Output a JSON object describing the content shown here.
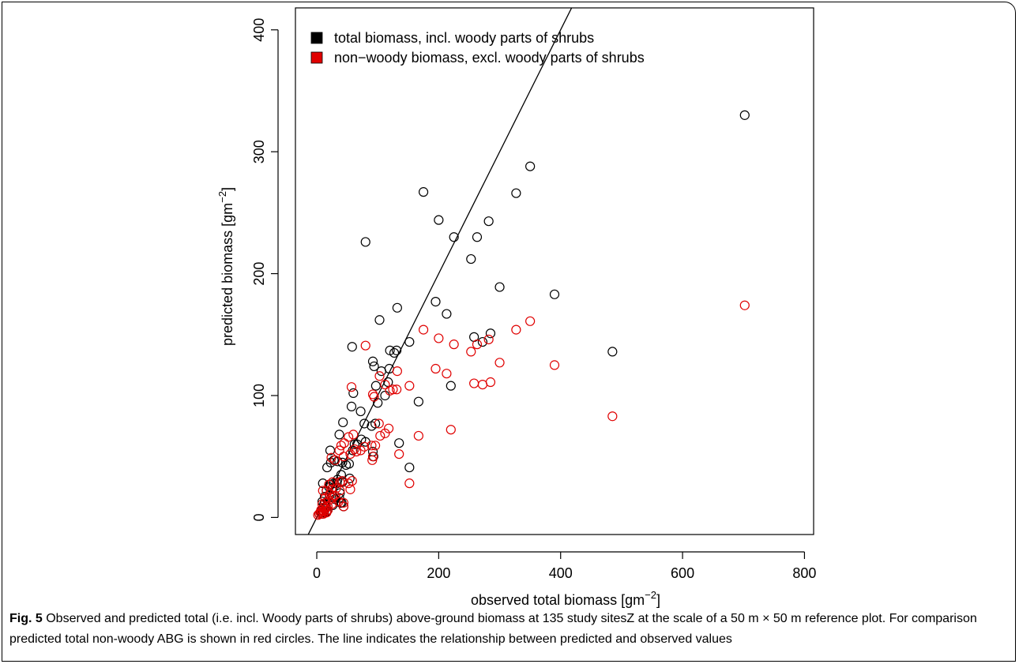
{
  "chart_data": {
    "type": "scatter",
    "xlabel": "observed total biomass [gm",
    "ylabel": "predicted biomass [gm",
    "unit_exponent": "−2",
    "xlim": [
      -35,
      815
    ],
    "ylim": [
      -14,
      418
    ],
    "x_ticks": [
      0,
      200,
      400,
      600,
      800
    ],
    "y_ticks": [
      0,
      100,
      200,
      300,
      400
    ],
    "x_tick_labels": [
      "0",
      "200",
      "400",
      "600",
      "800"
    ],
    "y_tick_labels": [
      "0",
      "100",
      "200",
      "300",
      "400"
    ],
    "grid": false,
    "legend_position": "top-left",
    "reference_line": {
      "description": "1:1 line",
      "slope": 1,
      "intercept": 0
    },
    "series": [
      {
        "name": "total biomass, incl. woody parts of shrubs",
        "color": "#000000",
        "points": [
          [
            702,
            330
          ],
          [
            350,
            288
          ],
          [
            327,
            266
          ],
          [
            175,
            267
          ],
          [
            200,
            244
          ],
          [
            282,
            243
          ],
          [
            263,
            230
          ],
          [
            225,
            230
          ],
          [
            80,
            226
          ],
          [
            253,
            212
          ],
          [
            195,
            177
          ],
          [
            132,
            172
          ],
          [
            213,
            167
          ],
          [
            103,
            162
          ],
          [
            300,
            189
          ],
          [
            390,
            183
          ],
          [
            285,
            151
          ],
          [
            258,
            148
          ],
          [
            272,
            144
          ],
          [
            152,
            144
          ],
          [
            58,
            140
          ],
          [
            120,
            137
          ],
          [
            127,
            135
          ],
          [
            131,
            137
          ],
          [
            92,
            128
          ],
          [
            94,
            124
          ],
          [
            119,
            122
          ],
          [
            106,
            120
          ],
          [
            97,
            108
          ],
          [
            220,
            108
          ],
          [
            485,
            136
          ],
          [
            60,
            102
          ],
          [
            117,
            111
          ],
          [
            112,
            100
          ],
          [
            57,
            91
          ],
          [
            100,
            94
          ],
          [
            167,
            95
          ],
          [
            72,
            87
          ],
          [
            96,
            77
          ],
          [
            90,
            75
          ],
          [
            78,
            77
          ],
          [
            43,
            78
          ],
          [
            62,
            60
          ],
          [
            73,
            64
          ],
          [
            66,
            60
          ],
          [
            59,
            55
          ],
          [
            37,
            68
          ],
          [
            80,
            62
          ],
          [
            92,
            54
          ],
          [
            93,
            50
          ],
          [
            135,
            61
          ],
          [
            53,
            44
          ],
          [
            48,
            43
          ],
          [
            42,
            45
          ],
          [
            22,
            55
          ],
          [
            28,
            47
          ],
          [
            23,
            45
          ],
          [
            17,
            41
          ],
          [
            34,
            46
          ],
          [
            152,
            41
          ],
          [
            40,
            35
          ],
          [
            54,
            32
          ],
          [
            34,
            31
          ],
          [
            42,
            29
          ],
          [
            28,
            28
          ],
          [
            33,
            28
          ],
          [
            22,
            27
          ],
          [
            10,
            28
          ],
          [
            20,
            25
          ],
          [
            26,
            24
          ],
          [
            16,
            22
          ],
          [
            38,
            20
          ],
          [
            21,
            18
          ],
          [
            13,
            17
          ],
          [
            37,
            16
          ],
          [
            30,
            15
          ],
          [
            9,
            13
          ],
          [
            39,
            12
          ],
          [
            41,
            12
          ],
          [
            12,
            11
          ],
          [
            26,
            10
          ],
          [
            44,
            9
          ],
          [
            15,
            9
          ],
          [
            11,
            8
          ],
          [
            14,
            7
          ],
          [
            8,
            6
          ],
          [
            18,
            6
          ],
          [
            11,
            5
          ],
          [
            16,
            5
          ],
          [
            7,
            4
          ],
          [
            12,
            4
          ],
          [
            9,
            3
          ],
          [
            4,
            3
          ]
        ]
      },
      {
        "name": "non−woody biomass, excl. woody parts of shrubs",
        "color": "#e00000",
        "points": [
          [
            702,
            174
          ],
          [
            350,
            161
          ],
          [
            327,
            154
          ],
          [
            175,
            154
          ],
          [
            200,
            147
          ],
          [
            282,
            146
          ],
          [
            263,
            142
          ],
          [
            225,
            142
          ],
          [
            80,
            141
          ],
          [
            253,
            136
          ],
          [
            300,
            127
          ],
          [
            390,
            125
          ],
          [
            195,
            122
          ],
          [
            213,
            118
          ],
          [
            132,
            120
          ],
          [
            103,
            116
          ],
          [
            57,
            107
          ],
          [
            92,
            101
          ],
          [
            94,
            99
          ],
          [
            120,
            104
          ],
          [
            125,
            105
          ],
          [
            131,
            105
          ],
          [
            112,
            109
          ],
          [
            152,
            108
          ],
          [
            258,
            110
          ],
          [
            272,
            109
          ],
          [
            285,
            111
          ],
          [
            485,
            83
          ],
          [
            102,
            77
          ],
          [
            118,
            73
          ],
          [
            112,
            69
          ],
          [
            104,
            67
          ],
          [
            167,
            67
          ],
          [
            220,
            72
          ],
          [
            135,
            52
          ],
          [
            60,
            68
          ],
          [
            52,
            66
          ],
          [
            45,
            61
          ],
          [
            40,
            59
          ],
          [
            62,
            56
          ],
          [
            65,
            54
          ],
          [
            78,
            58
          ],
          [
            90,
            59
          ],
          [
            96,
            59
          ],
          [
            92,
            50
          ],
          [
            91,
            47
          ],
          [
            72,
            55
          ],
          [
            55,
            52
          ],
          [
            37,
            55
          ],
          [
            44,
            50
          ],
          [
            24,
            49
          ],
          [
            30,
            47
          ],
          [
            152,
            28
          ],
          [
            58,
            30
          ],
          [
            52,
            28
          ],
          [
            42,
            30
          ],
          [
            38,
            29
          ],
          [
            26,
            29
          ],
          [
            20,
            27
          ],
          [
            32,
            24
          ],
          [
            38,
            22
          ],
          [
            55,
            23
          ],
          [
            24,
            23
          ],
          [
            16,
            22
          ],
          [
            10,
            22
          ],
          [
            21,
            19
          ],
          [
            30,
            18
          ],
          [
            14,
            16
          ],
          [
            26,
            16
          ],
          [
            20,
            14
          ],
          [
            36,
            13
          ],
          [
            44,
            12
          ],
          [
            14,
            12
          ],
          [
            9,
            11
          ],
          [
            25,
            11
          ],
          [
            44,
            9
          ],
          [
            18,
            9
          ],
          [
            11,
            8
          ],
          [
            14,
            7
          ],
          [
            7,
            6
          ],
          [
            18,
            6
          ],
          [
            12,
            5
          ],
          [
            9,
            5
          ],
          [
            16,
            4
          ],
          [
            6,
            4
          ],
          [
            11,
            3
          ],
          [
            4,
            3
          ],
          [
            8,
            3
          ],
          [
            2,
            2
          ]
        ]
      }
    ]
  },
  "caption": {
    "label": "Fig. 5",
    "text": " Observed and predicted total (i.e. incl. Woody parts of shrubs) above-ground biomass at 135 study sitesZ at the scale of a 50 m × 50 m reference plot. For comparison predicted total non-woody ABG is shown in red circles. The line indicates the relationship between predicted and observed values"
  }
}
